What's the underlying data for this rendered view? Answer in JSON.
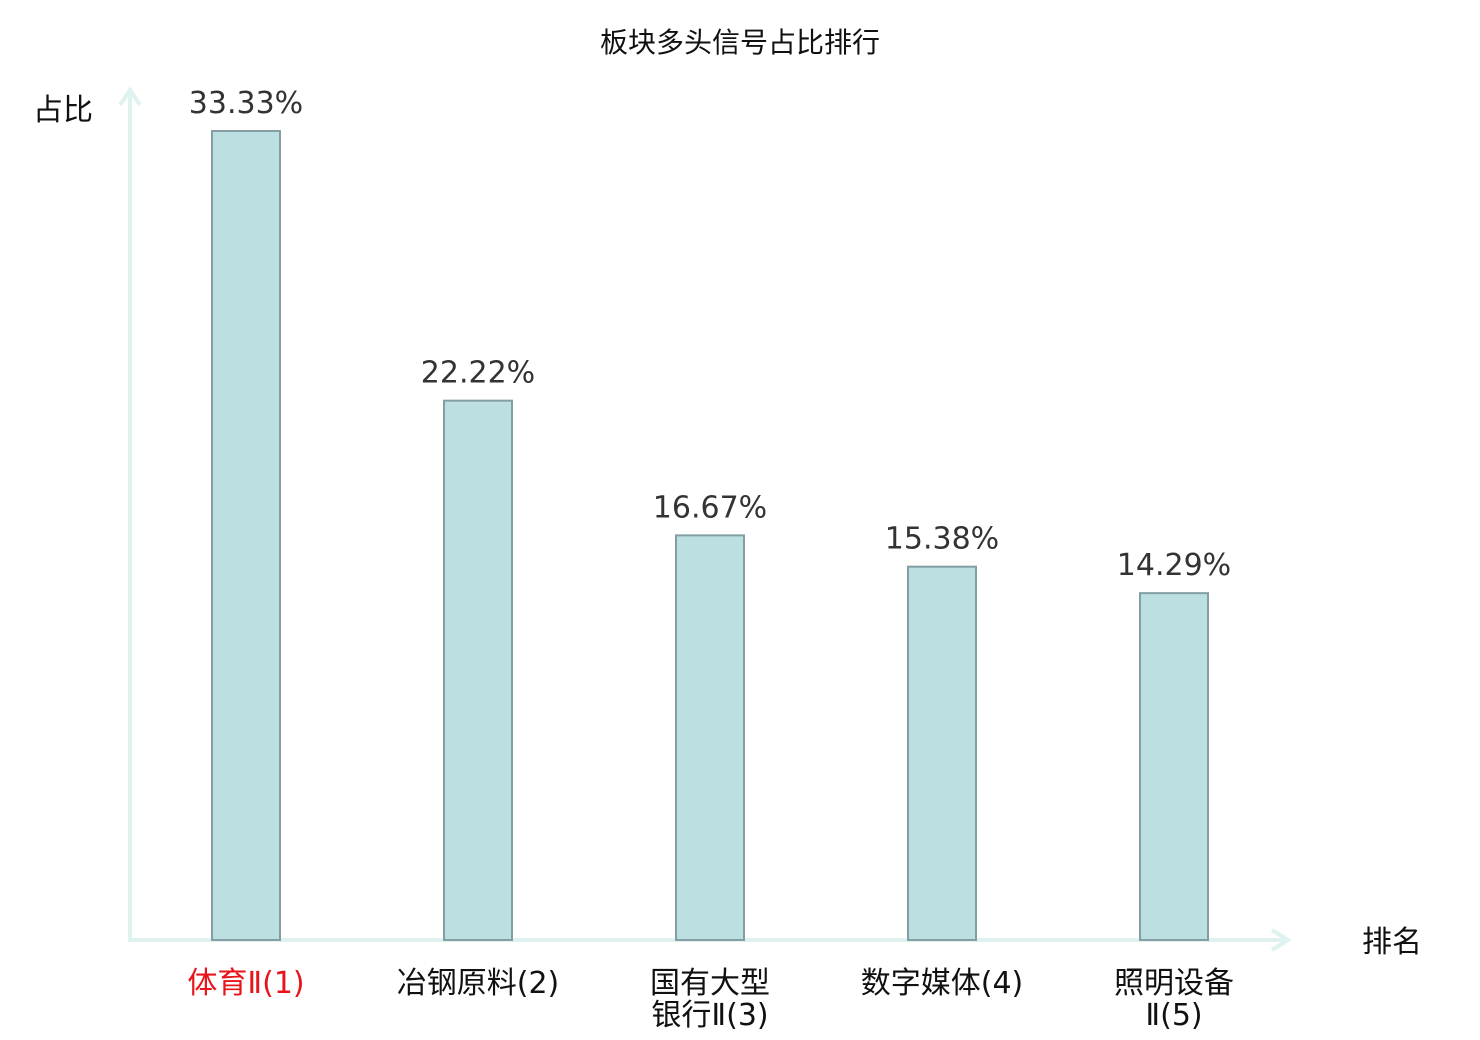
{
  "chart_data": {
    "type": "bar",
    "title": "板块多头信号占比排行",
    "ylabel": "占比",
    "xlabel": "排名",
    "categories": [
      [
        "体育Ⅱ(1)"
      ],
      [
        "冶钢原料(2)"
      ],
      [
        "国有大型",
        "银行Ⅱ(3)"
      ],
      [
        "数字媒体(4)"
      ],
      [
        "照明设备",
        "Ⅱ(5)"
      ]
    ],
    "values": [
      33.33,
      22.22,
      16.67,
      15.38,
      14.29
    ],
    "value_labels": [
      "33.33%",
      "22.22%",
      "16.67%",
      "15.38%",
      "14.29%"
    ],
    "highlight_index": 0,
    "ylim": [
      0,
      33.33
    ],
    "grid": false,
    "legend": "none"
  },
  "colors": {
    "bar_fill": "#bce0e2",
    "bar_stroke": "#849fa2",
    "axis": "#dff2ef",
    "highlight_label": "#e8141b"
  }
}
